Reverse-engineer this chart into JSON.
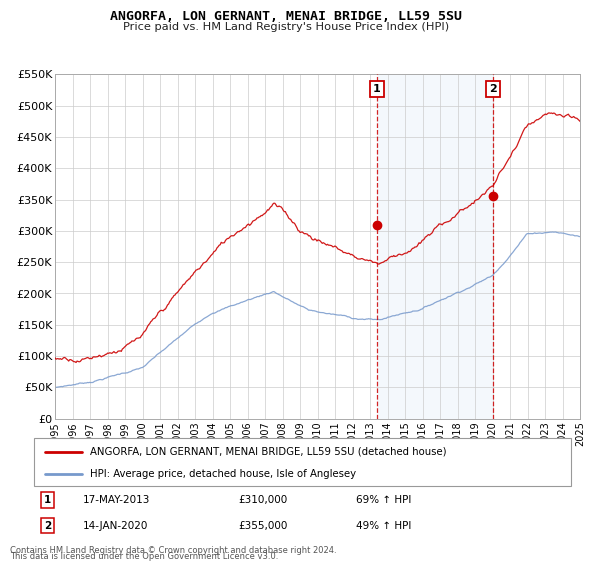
{
  "title": "ANGORFA, LON GERNANT, MENAI BRIDGE, LL59 5SU",
  "subtitle": "Price paid vs. HM Land Registry's House Price Index (HPI)",
  "ylabel_ticks": [
    "£0",
    "£50K",
    "£100K",
    "£150K",
    "£200K",
    "£250K",
    "£300K",
    "£350K",
    "£400K",
    "£450K",
    "£500K",
    "£550K"
  ],
  "ylim": [
    0,
    550000
  ],
  "ytick_vals": [
    0,
    50000,
    100000,
    150000,
    200000,
    250000,
    300000,
    350000,
    400000,
    450000,
    500000,
    550000
  ],
  "xmin_year": 1995,
  "xmax_year": 2025,
  "xtick_years": [
    1995,
    1996,
    1997,
    1998,
    1999,
    2000,
    2001,
    2002,
    2003,
    2004,
    2005,
    2006,
    2007,
    2008,
    2009,
    2010,
    2011,
    2012,
    2013,
    2014,
    2015,
    2016,
    2017,
    2018,
    2019,
    2020,
    2021,
    2022,
    2023,
    2024,
    2025
  ],
  "vline1_x": 2013.38,
  "vline2_x": 2020.04,
  "marker1_label": "1",
  "marker2_label": "2",
  "marker1_y": 310000,
  "marker2_y": 355000,
  "red_color": "#cc0000",
  "blue_color": "#7799cc",
  "shaded_region_start": 2013.38,
  "shaded_region_end": 2020.04,
  "legend_line1": "ANGORFA, LON GERNANT, MENAI BRIDGE, LL59 5SU (detached house)",
  "legend_line2": "HPI: Average price, detached house, Isle of Anglesey",
  "annot1_num": "1",
  "annot1_date": "17-MAY-2013",
  "annot1_price": "£310,000",
  "annot1_hpi": "69% ↑ HPI",
  "annot2_num": "2",
  "annot2_date": "14-JAN-2020",
  "annot2_price": "£355,000",
  "annot2_hpi": "49% ↑ HPI",
  "footnote1": "Contains HM Land Registry data © Crown copyright and database right 2024.",
  "footnote2": "This data is licensed under the Open Government Licence v3.0.",
  "bg_color": "#ffffff",
  "grid_color": "#cccccc"
}
